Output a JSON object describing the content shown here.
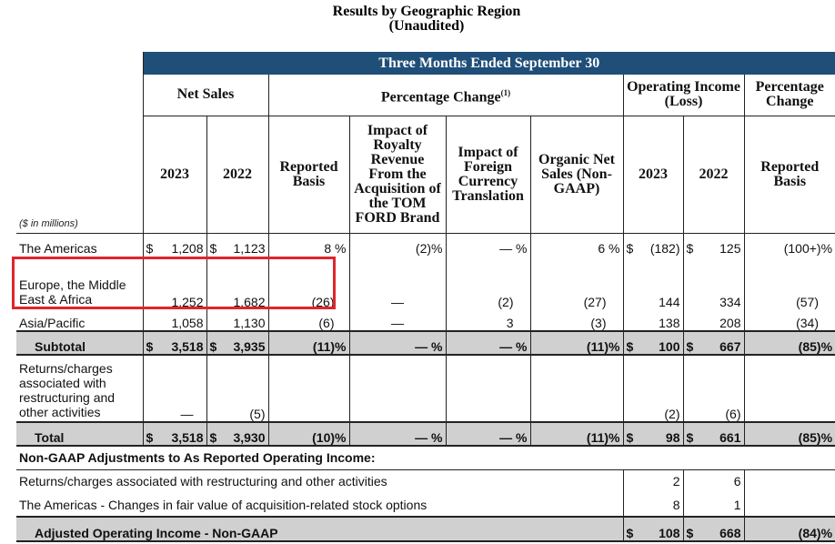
{
  "title": "Results by Geographic Region",
  "subtitle": "(Unaudited)",
  "band_label": "Three Months Ended September 30",
  "headers": {
    "net_sales": "Net Sales",
    "pct_change": "Percentage Change",
    "pct_change_sup": "(1)",
    "op_income": "Operating Income (Loss)",
    "pct_change_right": "Percentage Change",
    "y2023": "2023",
    "y2022": "2022",
    "reported_basis": "Reported Basis",
    "impact_royalty": "Impact of Royalty Revenue From the Acquisition of the TOM FORD Brand",
    "impact_fx": "Impact of Foreign Currency Translation",
    "organic": "Organic Net Sales (Non-GAAP)",
    "oi_2023": "2023",
    "oi_2022": "2022",
    "reported_basis_right": "Reported Basis"
  },
  "units": "($ in millions)",
  "rows": {
    "americas": {
      "label": "The Americas",
      "ns23": "1,208",
      "ns22": "1,123",
      "rep": "8",
      "roy": "(2)",
      "fx": "—",
      "org": "6",
      "oi23": "(182)",
      "oi22": "125",
      "pct": "(100+)"
    },
    "emea": {
      "label": "Europe, the Middle East & Africa",
      "ns23": "1,252",
      "ns22": "1,682",
      "rep": "(26)",
      "roy": "—",
      "fx": "(2)",
      "org": "(27)",
      "oi23": "144",
      "oi22": "334",
      "pct": "(57)"
    },
    "apac": {
      "label": "Asia/Pacific",
      "ns23": "1,058",
      "ns22": "1,130",
      "rep": "(6)",
      "roy": "—",
      "fx": "3",
      "org": "(3)",
      "oi23": "138",
      "oi22": "208",
      "pct": "(34)"
    },
    "subtotal": {
      "label": "Subtotal",
      "ns23": "3,518",
      "ns22": "3,935",
      "rep": "(11)",
      "roy": "—",
      "fx": "—",
      "org": "(11)",
      "oi23": "100",
      "oi22": "667",
      "pct": "(85)"
    },
    "returns": {
      "label": "Returns/charges associated with restructuring and other activities",
      "ns23": "—",
      "ns22": "(5)",
      "oi23": "(2)",
      "oi22": "(6)"
    },
    "total": {
      "label": "Total",
      "ns23": "3,518",
      "ns22": "3,930",
      "rep": "(10)",
      "roy": "—",
      "fx": "—",
      "org": "(11)",
      "oi23": "98",
      "oi22": "661",
      "pct": "(85)"
    }
  },
  "nongaap": {
    "heading": "Non-GAAP Adjustments to As Reported Operating Income:",
    "adj1": {
      "label": "Returns/charges associated with restructuring and other activities",
      "oi23": "2",
      "oi22": "6"
    },
    "adj2": {
      "label": "The Americas - Changes in fair value of acquisition-related stock options",
      "oi23": "8",
      "oi22": "1"
    },
    "adjusted": {
      "label": "Adjusted Operating Income - Non-GAAP",
      "oi23": "108",
      "oi22": "668",
      "pct": "(84)"
    }
  },
  "symbols": {
    "dollar": "$",
    "percent": "%"
  },
  "highlight_color": "#e0252c",
  "band_color": "#1f4e79"
}
